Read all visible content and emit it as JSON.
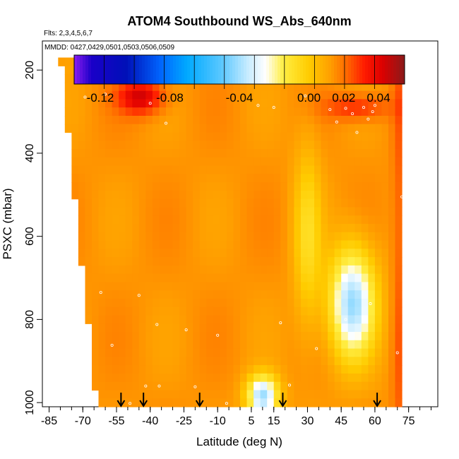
{
  "chart_data": {
    "type": "heatmap",
    "title": "ATOM4 Southbound WS_Abs_640nm",
    "flights_text": "Flts: 2,3,4,5,6,7",
    "dates_text": "MMDD: 0427,0429,0501,0503,0506,0509",
    "xlabel": "Latitude (deg N)",
    "ylabel": "PSXC (mbar)",
    "xlim": [
      -88,
      88
    ],
    "ylim": [
      1010,
      130
    ],
    "y_reversed": true,
    "x_ticks": [
      -85,
      -70,
      -55,
      -40,
      -25,
      -10,
      5,
      15,
      30,
      45,
      60,
      75
    ],
    "x_minor_step": 5,
    "y_ticks": [
      200,
      400,
      600,
      800,
      1000
    ],
    "colorbar": {
      "min": -0.135,
      "max": 0.055,
      "tick_values": [
        -0.12,
        -0.08,
        -0.04,
        0.0,
        0.02,
        0.04
      ],
      "tick_labels": [
        "-0.12",
        "-0.08",
        "-0.04",
        "0.00",
        "0.02",
        "0.04"
      ],
      "color_stops": [
        [
          -0.135,
          "#8a1cf0"
        ],
        [
          -0.125,
          "#1a00c8"
        ],
        [
          -0.105,
          "#0010b8"
        ],
        [
          -0.085,
          "#0066ff"
        ],
        [
          -0.07,
          "#00aaff"
        ],
        [
          -0.05,
          "#5cc8ff"
        ],
        [
          -0.035,
          "#c8ecff"
        ],
        [
          -0.025,
          "#ffffff"
        ],
        [
          -0.015,
          "#ffee44"
        ],
        [
          0.0,
          "#ffcc00"
        ],
        [
          0.012,
          "#ffa000"
        ],
        [
          0.022,
          "#ff6600"
        ],
        [
          0.032,
          "#ff1a00"
        ],
        [
          0.042,
          "#dd0000"
        ],
        [
          0.055,
          "#8a1a1a"
        ]
      ]
    },
    "profile_latitudes": [
      -53,
      -43,
      -18,
      19,
      61
    ],
    "sample_points": [
      [
        -49,
        1002
      ],
      [
        -42,
        960
      ],
      [
        -36,
        960
      ],
      [
        -20,
        962
      ],
      [
        -6,
        1002
      ],
      [
        22,
        958
      ],
      [
        34,
        870
      ],
      [
        -57,
        862
      ],
      [
        -45,
        742
      ],
      [
        -37,
        812
      ],
      [
        -24,
        825
      ],
      [
        -10,
        838
      ],
      [
        18,
        808
      ],
      [
        58,
        762
      ],
      [
        47,
        800
      ],
      [
        70,
        880
      ],
      [
        -62,
        735
      ],
      [
        -70,
        905
      ],
      [
        -83,
        290
      ],
      [
        -69,
        265
      ],
      [
        -60,
        230
      ],
      [
        -40,
        280
      ],
      [
        -33,
        328
      ],
      [
        -12,
        208
      ],
      [
        -2,
        222
      ],
      [
        0,
        225
      ],
      [
        8,
        285
      ],
      [
        15,
        290
      ],
      [
        29,
        262
      ],
      [
        40,
        295
      ],
      [
        43,
        325
      ],
      [
        47,
        292
      ],
      [
        50,
        305
      ],
      [
        52,
        350
      ],
      [
        55,
        290
      ],
      [
        57,
        318
      ],
      [
        59,
        300
      ],
      [
        60,
        285
      ],
      [
        72,
        505
      ],
      [
        -60,
        258
      ]
    ]
  }
}
